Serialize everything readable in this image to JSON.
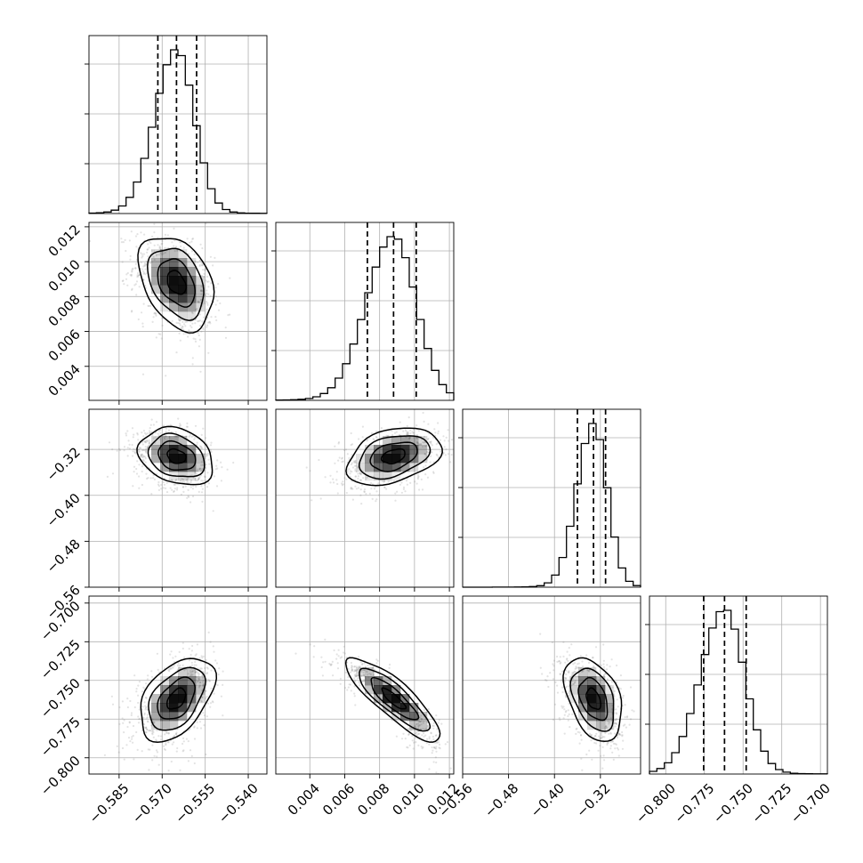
{
  "chart_data": {
    "type": "corner",
    "parameters": [
      {
        "median": -0.565,
        "q16": -0.5715,
        "q84": -0.558,
        "sigma": 0.0065,
        "range": [
          -0.5955,
          -0.5335
        ]
      },
      {
        "median": 0.0088,
        "q16": 0.0073,
        "q84": 0.0101,
        "sigma": 0.00135,
        "range": [
          0.00205,
          0.01225
        ]
      },
      {
        "median": -0.332,
        "q16": -0.36,
        "q84": -0.311,
        "sigma": 0.025,
        "range": [
          -0.56,
          -0.25
        ]
      },
      {
        "median": -0.762,
        "q16": -0.7755,
        "q84": -0.748,
        "sigma": 0.0135,
        "range": [
          -0.8105,
          -0.6955
        ]
      }
    ],
    "correlations": [
      {
        "pair": [
          0,
          1
        ],
        "rho": -0.35
      },
      {
        "pair": [
          0,
          2
        ],
        "rho": -0.25
      },
      {
        "pair": [
          0,
          3
        ],
        "rho": 0.45
      },
      {
        "pair": [
          1,
          2
        ],
        "rho": 0.35
      },
      {
        "pair": [
          1,
          3
        ],
        "rho": -0.85
      },
      {
        "pair": [
          2,
          3
        ],
        "rho": -0.4
      }
    ],
    "ticks": [
      [
        "−0.585",
        "−0.570",
        "−0.555",
        "−0.540"
      ],
      [
        "0.004",
        "0.006",
        "0.008",
        "0.010",
        "0.012"
      ],
      [
        "−0.56",
        "−0.48",
        "−0.40",
        "−0.32"
      ],
      [
        "−0.800",
        "−0.775",
        "−0.750",
        "−0.725",
        "−0.700"
      ]
    ],
    "tick_values": [
      [
        -0.585,
        -0.57,
        -0.555,
        -0.54
      ],
      [
        0.004,
        0.006,
        0.008,
        0.01,
        0.012
      ],
      [
        -0.56,
        -0.48,
        -0.4,
        -0.32
      ],
      [
        -0.8,
        -0.775,
        -0.75,
        -0.725,
        -0.7
      ]
    ],
    "contour_levels_sigma": [
      0.5,
      1.0,
      1.5,
      2.0
    ],
    "grid": true,
    "colors": {
      "points": "#808080",
      "lines": "#000000",
      "density": "#000000"
    }
  }
}
